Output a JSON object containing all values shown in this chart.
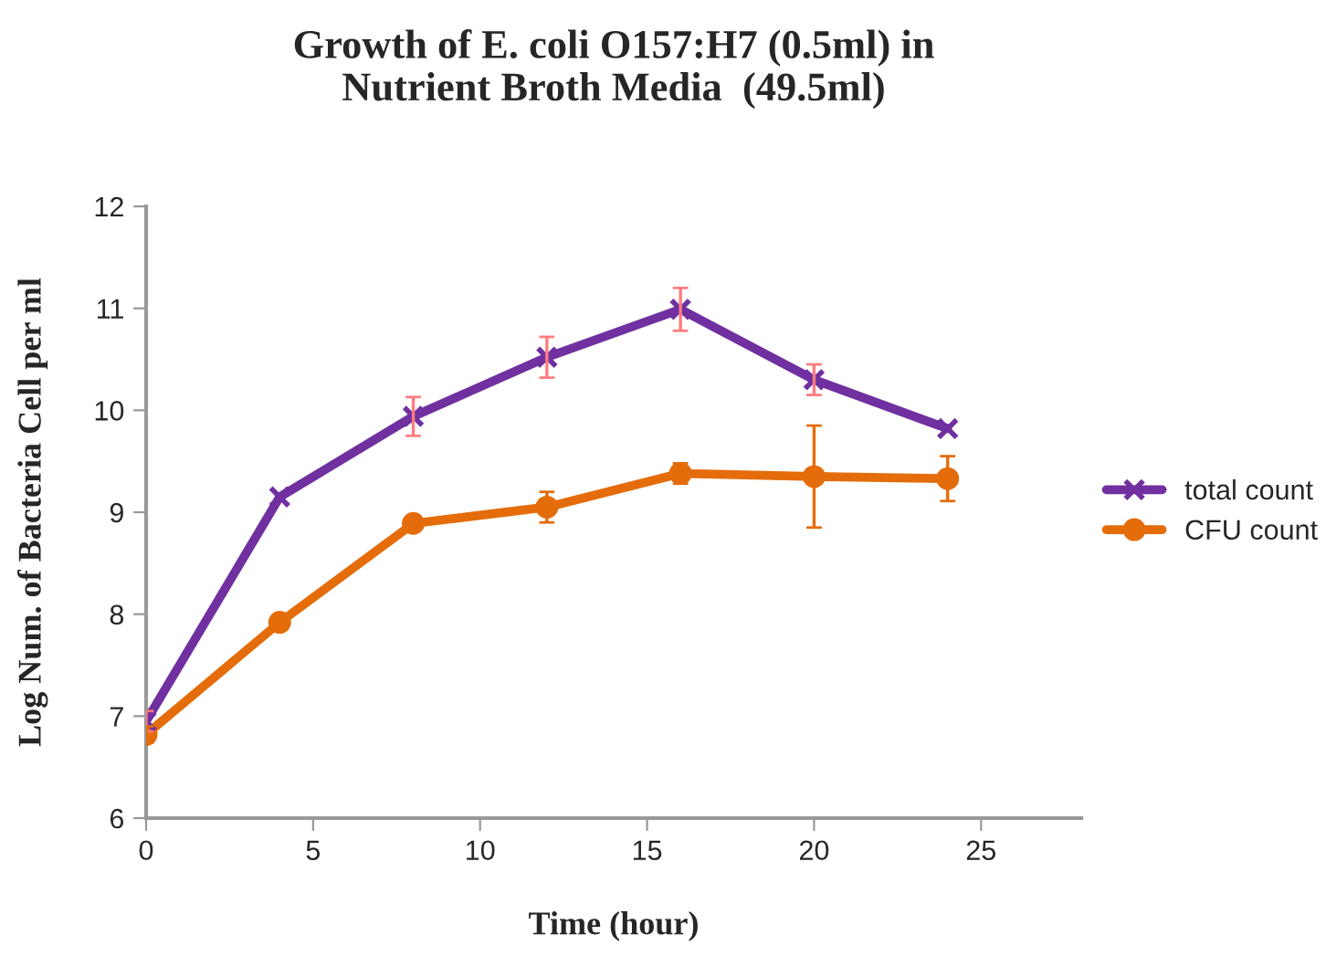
{
  "chart_data": {
    "type": "line",
    "title": "Growth of E. coli O157:H7 (0.5ml) in\nNutrient Broth Media  (49.5ml)",
    "xlabel": "Time (hour)",
    "ylabel": "Log Num. of Bacteria Cell per ml",
    "x": [
      0,
      4,
      8,
      12,
      16,
      20,
      24
    ],
    "series": [
      {
        "name": "total count",
        "color": "#7030a0",
        "marker": "cross",
        "values": [
          6.95,
          9.15,
          9.94,
          10.52,
          10.99,
          10.3,
          9.82
        ],
        "errors": [
          0.1,
          null,
          0.19,
          0.2,
          0.21,
          0.15,
          null
        ]
      },
      {
        "name": "CFU count",
        "color": "#e46c0a",
        "marker": "circle",
        "values": [
          6.82,
          7.92,
          8.89,
          9.05,
          9.38,
          9.35,
          9.33
        ],
        "errors": [
          0.08,
          0.05,
          null,
          0.15,
          0.1,
          0.5,
          0.22
        ]
      }
    ],
    "xlim": [
      0,
      28
    ],
    "xticks": [
      0,
      5,
      10,
      15,
      20,
      25
    ],
    "ylim": [
      6,
      12
    ],
    "yticks": [
      6,
      7,
      8,
      9,
      10,
      11,
      12
    ],
    "grid": false,
    "legend": "right",
    "line_style": "solid"
  }
}
